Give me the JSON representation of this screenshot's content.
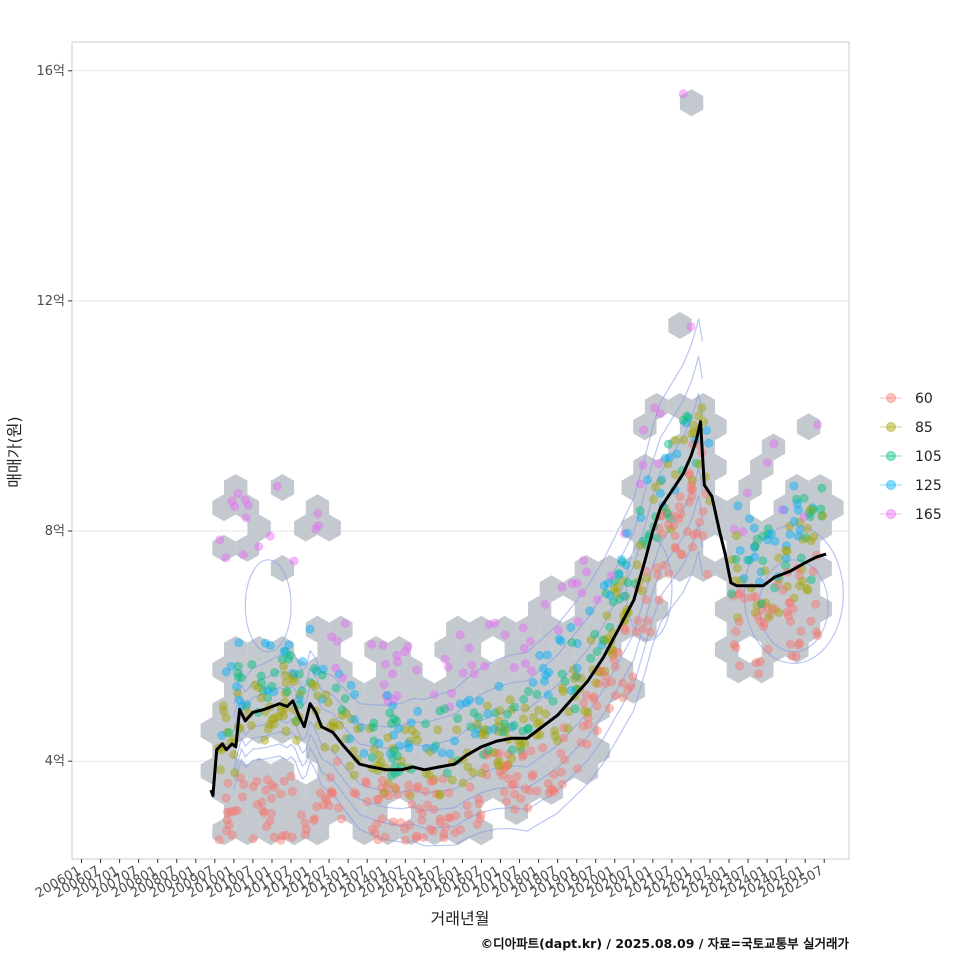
{
  "chart_data": {
    "type": "scatter",
    "xlabel": "거래년월",
    "ylabel": "매매가(원)",
    "caption": "©디아파트(dapt.kr) / 2025.08.09 / 자료=국토교통부 실거래가",
    "x_range": [
      2005.75,
      2026.15
    ],
    "y_range": [
      2.3,
      16.5
    ],
    "y_ticks": [
      {
        "value": 4,
        "label": "4억"
      },
      {
        "value": 8,
        "label": "8억"
      },
      {
        "value": 12,
        "label": "12억"
      },
      {
        "value": 16,
        "label": "16억"
      }
    ],
    "x_tick_labels": [
      "200601",
      "200607",
      "200701",
      "200707",
      "200801",
      "200807",
      "200901",
      "200907",
      "201001",
      "201007",
      "201101",
      "201107",
      "201201",
      "201207",
      "201301",
      "201307",
      "201401",
      "201407",
      "201501",
      "201507",
      "201601",
      "201607",
      "201701",
      "201707",
      "201801",
      "201807",
      "201901",
      "201907",
      "202001",
      "202007",
      "202101",
      "202107",
      "202201",
      "202207",
      "202301",
      "202307",
      "202401",
      "202407",
      "202501",
      "202507"
    ],
    "legend": [
      {
        "label": "60",
        "color": "#F8766D"
      },
      {
        "label": "85",
        "color": "#A3A500"
      },
      {
        "label": "105",
        "color": "#00BF7D"
      },
      {
        "label": "125",
        "color": "#00B0F6"
      },
      {
        "label": "165",
        "color": "#E76BF3"
      }
    ],
    "trend_line": {
      "name": "moving average",
      "color": "#000000",
      "points": [
        [
          2009.4,
          3.5
        ],
        [
          2009.45,
          3.4
        ],
        [
          2009.55,
          4.2
        ],
        [
          2009.7,
          4.3
        ],
        [
          2009.8,
          4.2
        ],
        [
          2009.95,
          4.3
        ],
        [
          2010.05,
          4.25
        ],
        [
          2010.15,
          4.9
        ],
        [
          2010.3,
          4.7
        ],
        [
          2010.5,
          4.85
        ],
        [
          2010.8,
          4.9
        ],
        [
          2011.0,
          4.95
        ],
        [
          2011.2,
          5.0
        ],
        [
          2011.4,
          4.95
        ],
        [
          2011.55,
          5.05
        ],
        [
          2011.7,
          4.8
        ],
        [
          2011.85,
          4.6
        ],
        [
          2012.0,
          5.0
        ],
        [
          2012.15,
          4.85
        ],
        [
          2012.3,
          4.6
        ],
        [
          2012.6,
          4.5
        ],
        [
          2012.9,
          4.25
        ],
        [
          2013.1,
          4.1
        ],
        [
          2013.3,
          3.95
        ],
        [
          2013.6,
          3.9
        ],
        [
          2014.0,
          3.85
        ],
        [
          2014.4,
          3.85
        ],
        [
          2014.7,
          3.9
        ],
        [
          2015.0,
          3.85
        ],
        [
          2015.4,
          3.9
        ],
        [
          2015.8,
          3.95
        ],
        [
          2016.1,
          4.1
        ],
        [
          2016.5,
          4.25
        ],
        [
          2016.9,
          4.35
        ],
        [
          2017.3,
          4.4
        ],
        [
          2017.7,
          4.4
        ],
        [
          2018.0,
          4.55
        ],
        [
          2018.5,
          4.8
        ],
        [
          2018.9,
          5.1
        ],
        [
          2019.3,
          5.4
        ],
        [
          2019.7,
          5.8
        ],
        [
          2020.1,
          6.3
        ],
        [
          2020.5,
          6.8
        ],
        [
          2020.8,
          7.5
        ],
        [
          2021.0,
          8.0
        ],
        [
          2021.2,
          8.4
        ],
        [
          2021.5,
          8.7
        ],
        [
          2021.8,
          9.0
        ],
        [
          2022.0,
          9.3
        ],
        [
          2022.15,
          9.6
        ],
        [
          2022.25,
          9.9
        ],
        [
          2022.35,
          8.8
        ],
        [
          2022.55,
          8.6
        ],
        [
          2022.75,
          8.0
        ],
        [
          2022.9,
          7.6
        ],
        [
          2023.05,
          7.1
        ],
        [
          2023.2,
          7.05
        ],
        [
          2023.5,
          7.05
        ],
        [
          2023.9,
          7.05
        ],
        [
          2024.2,
          7.2
        ],
        [
          2024.6,
          7.3
        ],
        [
          2025.0,
          7.45
        ],
        [
          2025.3,
          7.55
        ],
        [
          2025.55,
          7.6
        ]
      ]
    }
  }
}
